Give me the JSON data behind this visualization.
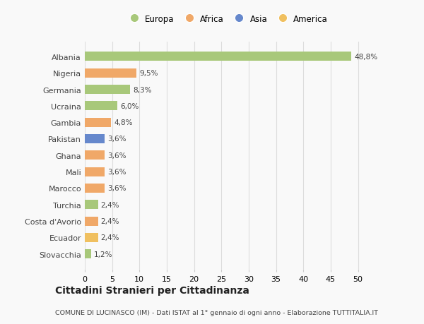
{
  "categories": [
    "Slovacchia",
    "Ecuador",
    "Costa d'Avorio",
    "Turchia",
    "Marocco",
    "Mali",
    "Ghana",
    "Pakistan",
    "Gambia",
    "Ucraina",
    "Germania",
    "Nigeria",
    "Albania"
  ],
  "values": [
    1.2,
    2.4,
    2.4,
    2.4,
    3.6,
    3.6,
    3.6,
    3.6,
    4.8,
    6.0,
    8.3,
    9.5,
    48.8
  ],
  "labels": [
    "1,2%",
    "2,4%",
    "2,4%",
    "2,4%",
    "3,6%",
    "3,6%",
    "3,6%",
    "3,6%",
    "4,8%",
    "6,0%",
    "8,3%",
    "9,5%",
    "48,8%"
  ],
  "colors": [
    "#a8c87a",
    "#f0c060",
    "#f0a868",
    "#a8c87a",
    "#f0a868",
    "#f0a868",
    "#f0a868",
    "#6688cc",
    "#f0a868",
    "#a8c87a",
    "#a8c87a",
    "#f0a868",
    "#a8c87a"
  ],
  "legend_labels": [
    "Europa",
    "Africa",
    "Asia",
    "America"
  ],
  "legend_colors": [
    "#a8c87a",
    "#f0a868",
    "#6688cc",
    "#f0c060"
  ],
  "xlim": [
    0,
    52
  ],
  "xticks": [
    0,
    5,
    10,
    15,
    20,
    25,
    30,
    35,
    40,
    45,
    50
  ],
  "title": "Cittadini Stranieri per Cittadinanza",
  "subtitle": "COMUNE DI LUCINASCO (IM) - Dati ISTAT al 1° gennaio di ogni anno - Elaborazione TUTTITALIA.IT",
  "bg_color": "#f9f9f9",
  "bar_height": 0.55,
  "grid_color": "#dddddd",
  "text_color": "#444444"
}
